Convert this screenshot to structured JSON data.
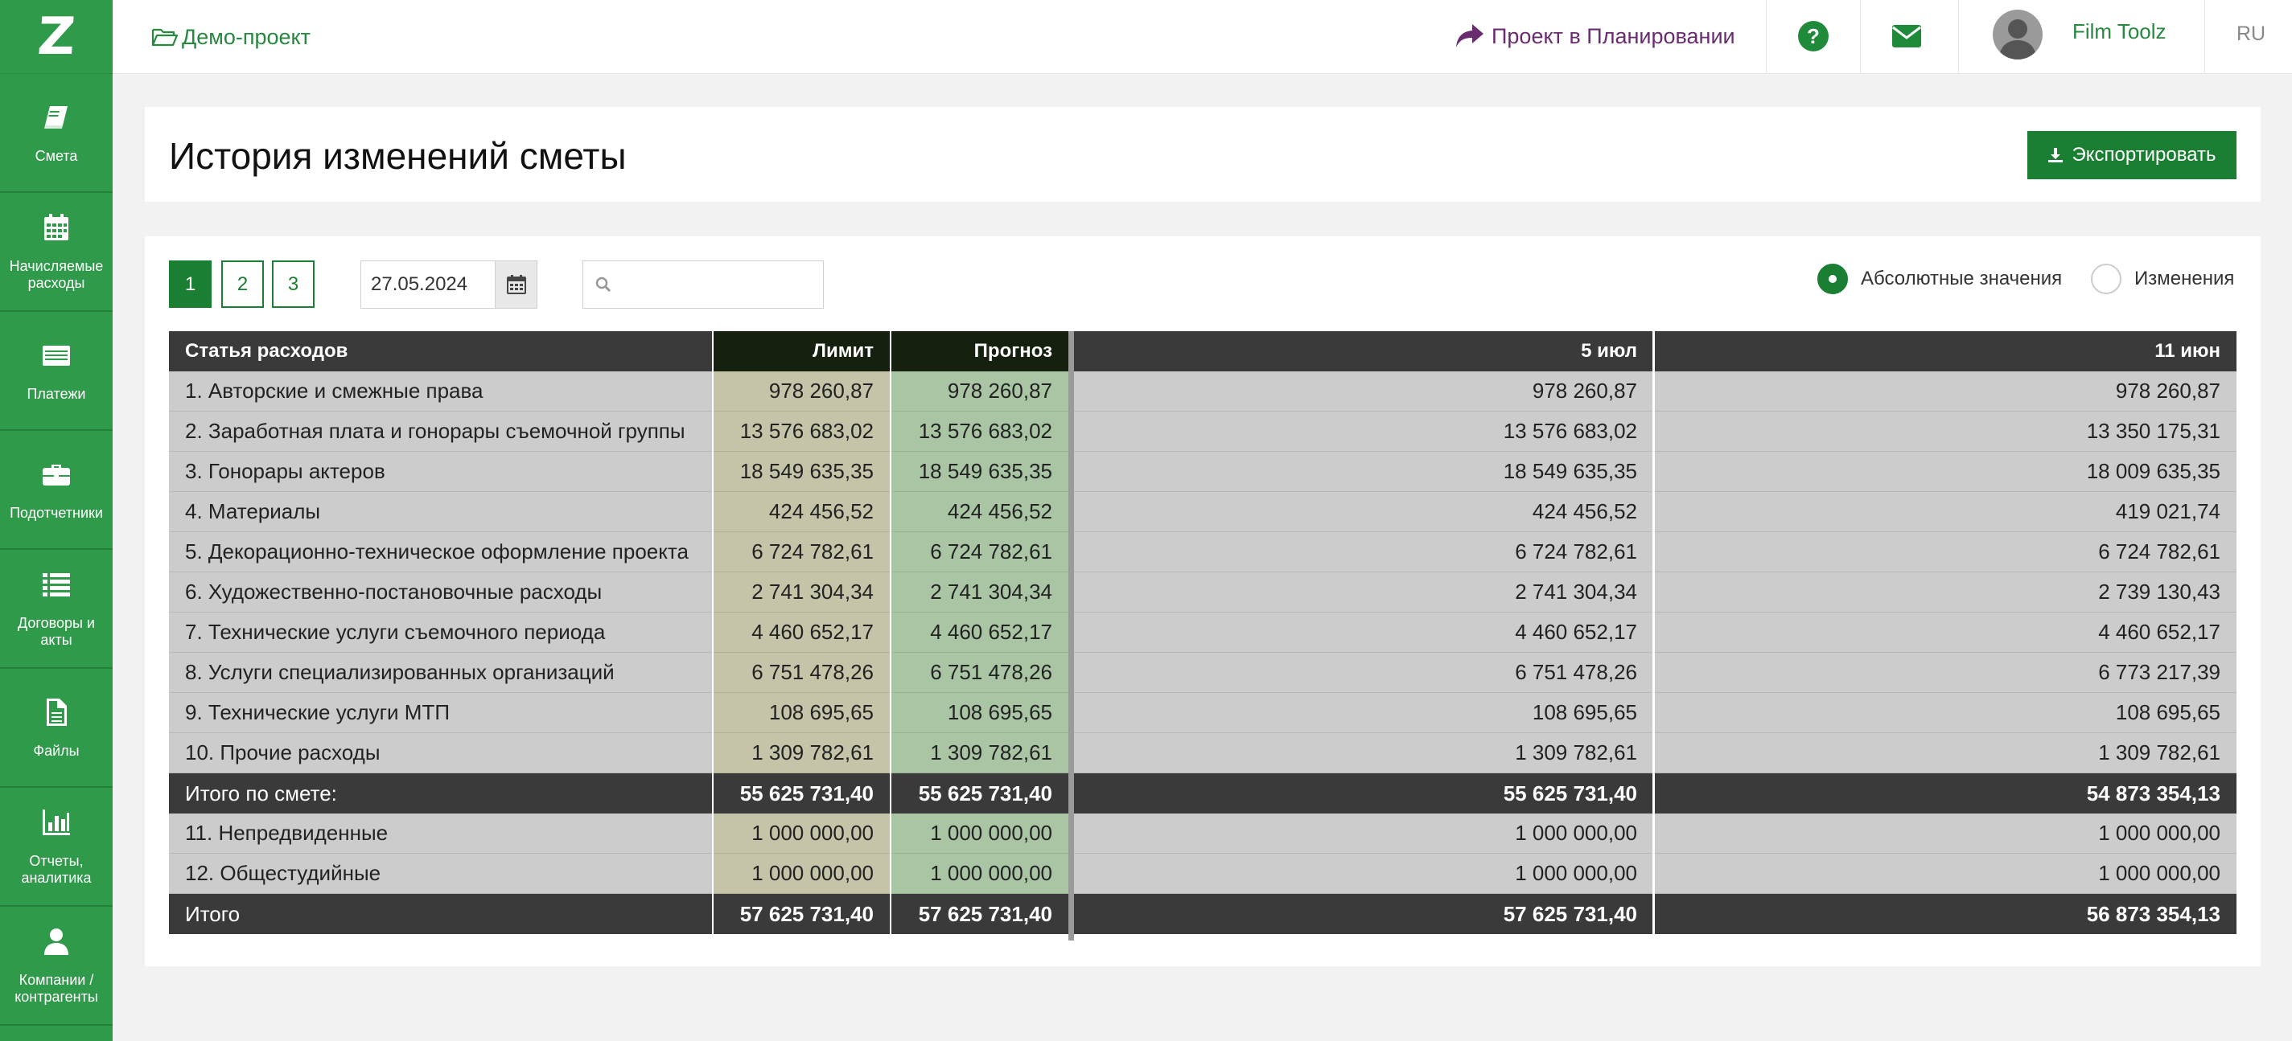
{
  "sidebar": {
    "logo": "Z",
    "items": [
      {
        "label": "Смета",
        "icon": "book-icon"
      },
      {
        "label": "Начисляемые расходы",
        "icon": "calendar-icon"
      },
      {
        "label": "Платежи",
        "icon": "card-icon"
      },
      {
        "label": "Подотчетники",
        "icon": "briefcase-icon"
      },
      {
        "label": "Договоры и акты",
        "icon": "list-icon"
      },
      {
        "label": "Файлы",
        "icon": "file-icon"
      },
      {
        "label": "Отчеты, аналитика",
        "icon": "bar-chart-icon"
      },
      {
        "label": "Компании / контрагенты",
        "icon": "user-icon"
      }
    ]
  },
  "topbar": {
    "project_name": "Демо-проект",
    "planning_label": "Проект в Планировании",
    "user_name": "Film Toolz",
    "language": "RU"
  },
  "header": {
    "title": "История изменений сметы",
    "export_label": "Экспортировать"
  },
  "filters": {
    "pages": [
      "1",
      "2",
      "3"
    ],
    "active_page": "1",
    "date_value": "27.05.2024",
    "search_placeholder": "",
    "radio_absolute": "Абсолютные значения",
    "radio_changes": "Изменения",
    "selected_mode": "absolute"
  },
  "table": {
    "headers": {
      "name": "Статья расходов",
      "limit": "Лимит",
      "forecast": "Прогноз",
      "date1": "5 июл",
      "date2": "11 июн"
    },
    "rows": [
      {
        "name": "1. Авторские и смежные права",
        "limit": "978 260,87",
        "forecast": "978 260,87",
        "date1": "978 260,87",
        "date2": "978 260,87",
        "type": "item"
      },
      {
        "name": "2. Заработная плата и гонорары съемочной группы",
        "limit": "13 576 683,02",
        "forecast": "13 576 683,02",
        "date1": "13 576 683,02",
        "date2": "13 350 175,31",
        "type": "item"
      },
      {
        "name": "3. Гонорары актеров",
        "limit": "18 549 635,35",
        "forecast": "18 549 635,35",
        "date1": "18 549 635,35",
        "date2": "18 009 635,35",
        "type": "item"
      },
      {
        "name": "4. Материалы",
        "limit": "424 456,52",
        "forecast": "424 456,52",
        "date1": "424 456,52",
        "date2": "419 021,74",
        "type": "item"
      },
      {
        "name": "5. Декорационно-техническое оформление проекта",
        "limit": "6 724 782,61",
        "forecast": "6 724 782,61",
        "date1": "6 724 782,61",
        "date2": "6 724 782,61",
        "type": "item"
      },
      {
        "name": "6. Художественно-постановочные расходы",
        "limit": "2 741 304,34",
        "forecast": "2 741 304,34",
        "date1": "2 741 304,34",
        "date2": "2 739 130,43",
        "type": "item"
      },
      {
        "name": "7. Технические услуги съемочного периода",
        "limit": "4 460 652,17",
        "forecast": "4 460 652,17",
        "date1": "4 460 652,17",
        "date2": "4 460 652,17",
        "type": "item"
      },
      {
        "name": "8. Услуги специализированных организаций",
        "limit": "6 751 478,26",
        "forecast": "6 751 478,26",
        "date1": "6 751 478,26",
        "date2": "6 773 217,39",
        "type": "item"
      },
      {
        "name": "9. Технические услуги МТП",
        "limit": "108 695,65",
        "forecast": "108 695,65",
        "date1": "108 695,65",
        "date2": "108 695,65",
        "type": "item"
      },
      {
        "name": "10. Прочие расходы",
        "limit": "1 309 782,61",
        "forecast": "1 309 782,61",
        "date1": "1 309 782,61",
        "date2": "1 309 782,61",
        "type": "item"
      },
      {
        "name": "Итого по смете:",
        "limit": "55 625 731,40",
        "forecast": "55 625 731,40",
        "date1": "55 625 731,40",
        "date2": "54 873 354,13",
        "type": "total"
      },
      {
        "name": "11. Непредвиденные",
        "limit": "1 000 000,00",
        "forecast": "1 000 000,00",
        "date1": "1 000 000,00",
        "date2": "1 000 000,00",
        "type": "item"
      },
      {
        "name": "12. Общестудийные",
        "limit": "1 000 000,00",
        "forecast": "1 000 000,00",
        "date1": "1 000 000,00",
        "date2": "1 000 000,00",
        "type": "item"
      },
      {
        "name": "Итого",
        "limit": "57 625 731,40",
        "forecast": "57 625 731,40",
        "date1": "57 625 731,40",
        "date2": "56 873 354,13",
        "type": "total"
      }
    ]
  },
  "colors": {
    "brand_green": "#2e9a4a",
    "button_green": "#1b7f33",
    "planning_purple": "#6a2c70"
  }
}
